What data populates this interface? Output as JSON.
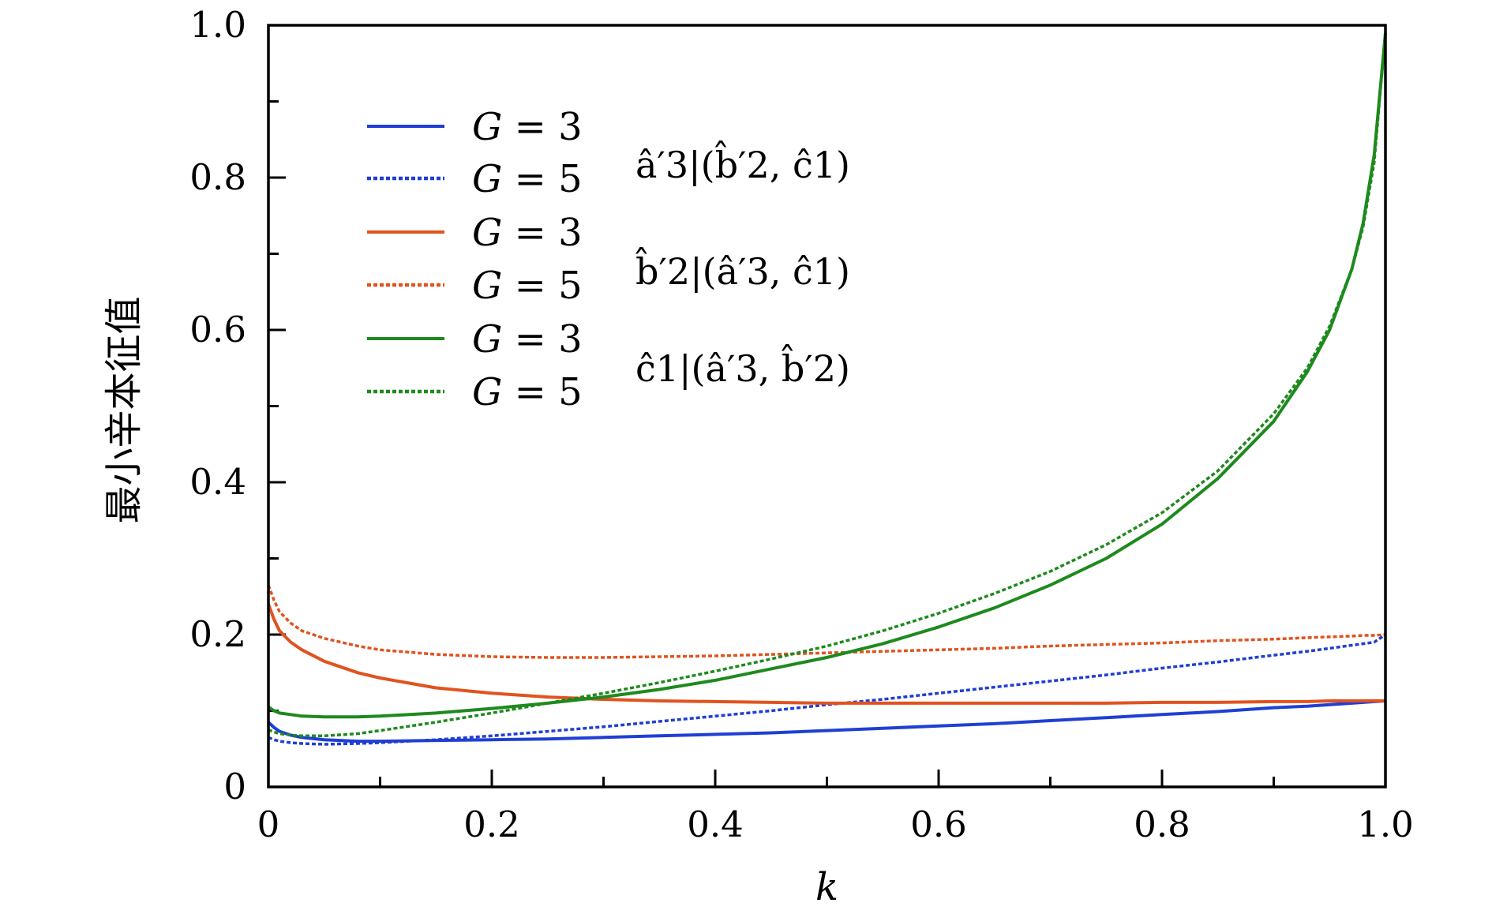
{
  "chart_data": {
    "type": "line",
    "xlabel": "k",
    "ylabel": "最小辛本征值",
    "xlim": [
      0,
      1
    ],
    "ylim": [
      0,
      1
    ],
    "xticks": [
      "0",
      "0.2",
      "0.4",
      "0.6",
      "0.8",
      "1.0"
    ],
    "yticks": [
      "0",
      "0.2",
      "0.4",
      "0.6",
      "0.8",
      "1.0"
    ],
    "grid": false,
    "legend_placement": "top-left",
    "legend_groups": [
      {
        "label": "â′3|(b̂′2, ĉ1)",
        "color": "#1f3fd4"
      },
      {
        "label": "b̂′2|(â′3, ĉ1)",
        "color": "#e0531f"
      },
      {
        "label": "ĉ1|(â′3, b̂′2)",
        "color": "#1e8a1e"
      }
    ],
    "x": [
      0.0,
      0.005,
      0.01,
      0.02,
      0.03,
      0.05,
      0.08,
      0.1,
      0.15,
      0.2,
      0.25,
      0.3,
      0.35,
      0.4,
      0.45,
      0.5,
      0.55,
      0.6,
      0.65,
      0.7,
      0.75,
      0.8,
      0.85,
      0.9,
      0.93,
      0.95,
      0.97,
      0.98,
      0.99,
      1.0
    ],
    "series": [
      {
        "name": "G = 3",
        "color": "#1f3fd4",
        "dash": "solid",
        "values": [
          0.085,
          0.078,
          0.073,
          0.068,
          0.065,
          0.062,
          0.06,
          0.06,
          0.061,
          0.062,
          0.063,
          0.065,
          0.067,
          0.069,
          0.071,
          0.074,
          0.077,
          0.08,
          0.083,
          0.087,
          0.091,
          0.095,
          0.099,
          0.104,
          0.106,
          0.108,
          0.11,
          0.111,
          0.112,
          0.113
        ]
      },
      {
        "name": "G = 5",
        "color": "#1f3fd4",
        "dash": "dotted",
        "values": [
          0.065,
          0.062,
          0.06,
          0.058,
          0.057,
          0.056,
          0.057,
          0.058,
          0.062,
          0.067,
          0.073,
          0.079,
          0.086,
          0.093,
          0.1,
          0.108,
          0.115,
          0.123,
          0.131,
          0.139,
          0.147,
          0.156,
          0.164,
          0.173,
          0.178,
          0.182,
          0.186,
          0.188,
          0.19,
          0.2
        ]
      },
      {
        "name": "G = 3",
        "color": "#e0531f",
        "dash": "solid",
        "values": [
          0.24,
          0.22,
          0.205,
          0.19,
          0.18,
          0.165,
          0.15,
          0.143,
          0.13,
          0.123,
          0.118,
          0.115,
          0.113,
          0.112,
          0.111,
          0.11,
          0.11,
          0.11,
          0.11,
          0.11,
          0.11,
          0.111,
          0.111,
          0.112,
          0.112,
          0.113,
          0.113,
          0.113,
          0.113,
          0.113
        ]
      },
      {
        "name": "G = 5",
        "color": "#e0531f",
        "dash": "dotted",
        "values": [
          0.265,
          0.245,
          0.23,
          0.215,
          0.205,
          0.195,
          0.185,
          0.18,
          0.174,
          0.171,
          0.17,
          0.17,
          0.171,
          0.172,
          0.174,
          0.176,
          0.178,
          0.18,
          0.182,
          0.185,
          0.187,
          0.189,
          0.192,
          0.194,
          0.196,
          0.197,
          0.198,
          0.199,
          0.199,
          0.2
        ]
      },
      {
        "name": "G = 3",
        "color": "#1e8a1e",
        "dash": "solid",
        "values": [
          0.105,
          0.1,
          0.097,
          0.095,
          0.093,
          0.092,
          0.092,
          0.093,
          0.097,
          0.103,
          0.11,
          0.118,
          0.128,
          0.14,
          0.155,
          0.17,
          0.188,
          0.21,
          0.235,
          0.265,
          0.3,
          0.345,
          0.405,
          0.48,
          0.545,
          0.6,
          0.68,
          0.74,
          0.83,
          0.99
        ]
      },
      {
        "name": "G = 5",
        "color": "#1e8a1e",
        "dash": "dotted",
        "values": [
          0.075,
          0.072,
          0.07,
          0.068,
          0.067,
          0.067,
          0.07,
          0.074,
          0.085,
          0.097,
          0.11,
          0.123,
          0.137,
          0.152,
          0.168,
          0.185,
          0.205,
          0.228,
          0.254,
          0.283,
          0.318,
          0.36,
          0.415,
          0.49,
          0.55,
          0.605,
          0.68,
          0.735,
          0.82,
          0.99
        ]
      }
    ]
  }
}
